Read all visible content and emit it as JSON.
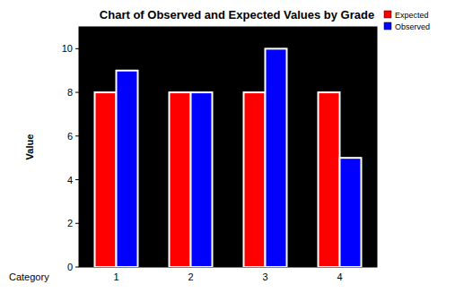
{
  "chart_data": {
    "type": "bar",
    "title": "Chart of Observed and Expected Values by Grade",
    "x_label": "Category",
    "y_label": "Value",
    "categories": [
      "1",
      "2",
      "3",
      "4"
    ],
    "series": [
      {
        "name": "Expected",
        "color": "#ff0000",
        "values": [
          8,
          8,
          8,
          8
        ]
      },
      {
        "name": "Observed",
        "color": "#0000ff",
        "values": [
          9,
          8,
          10,
          5
        ]
      }
    ],
    "ylim": [
      0,
      11
    ],
    "yticks": [
      0,
      2,
      4,
      6,
      8,
      10
    ],
    "grid": false,
    "legend": "right"
  }
}
